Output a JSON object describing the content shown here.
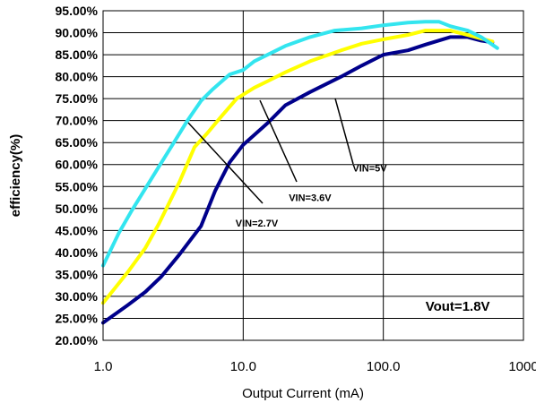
{
  "chart_data": {
    "type": "line",
    "xlabel": "Output Current (mA)",
    "ylabel": "efficiency(%)",
    "x_scale": "log",
    "xlim": [
      1,
      1000
    ],
    "ylim": [
      20,
      95
    ],
    "x_ticks": [
      1,
      10,
      100,
      1000
    ],
    "x_tick_labels": [
      "1.0",
      "10.0",
      "100.0",
      "1000"
    ],
    "y_ticks": [
      20,
      25,
      30,
      35,
      40,
      45,
      50,
      55,
      60,
      65,
      70,
      75,
      80,
      85,
      90,
      95
    ],
    "y_tick_labels": [
      "20.00%",
      "25.00%",
      "30.00%",
      "35.00%",
      "40.00%",
      "45.00%",
      "50.00%",
      "55.00%",
      "60.00%",
      "65.00%",
      "70.00%",
      "75.00%",
      "80.00%",
      "85.00%",
      "90.00%",
      "95.00%"
    ],
    "grid": true,
    "series": [
      {
        "name": "VIN=2.7V",
        "color": "#00008b",
        "x": [
          1.0,
          1.5,
          2.0,
          2.6,
          3.5,
          5.0,
          6.3,
          8.0,
          10.0,
          15.0,
          20.0,
          30.0,
          50.0,
          70.0,
          100.0,
          150.0,
          200.0,
          300.0,
          400.0,
          500.0,
          600.0
        ],
        "y": [
          24.0,
          28.0,
          31.0,
          34.5,
          39.5,
          46.0,
          54.0,
          60.5,
          64.5,
          69.5,
          73.5,
          76.5,
          80.0,
          82.5,
          85.0,
          86.0,
          87.3,
          89.0,
          89.0,
          88.2,
          87.8
        ]
      },
      {
        "name": "VIN=3.6V",
        "color": "#ffff00",
        "x": [
          1.0,
          1.5,
          2.0,
          2.5,
          3.5,
          4.5,
          5.5,
          7.0,
          9.0,
          12.0,
          15.0,
          20.0,
          30.0,
          50.0,
          70.0,
          100.0,
          150.0,
          200.0,
          300.0,
          400.0,
          600.0
        ],
        "y": [
          28.5,
          35.5,
          41.0,
          46.5,
          56.0,
          64.0,
          67.0,
          71.0,
          75.0,
          77.5,
          79.0,
          81.0,
          83.5,
          86.0,
          87.5,
          88.5,
          89.5,
          90.5,
          90.5,
          89.5,
          88.0
        ]
      },
      {
        "name": "VIN=5V",
        "color": "#33e5ef",
        "x": [
          1.0,
          1.3,
          1.6,
          2.0,
          2.5,
          3.2,
          4.0,
          5.0,
          6.0,
          8.0,
          10.0,
          12.0,
          20.0,
          30.0,
          45.0,
          70.0,
          100.0,
          150.0,
          200.0,
          250.0,
          300.0,
          400.0,
          500.0,
          650.0
        ],
        "y": [
          37.0,
          44.5,
          49.5,
          54.5,
          59.5,
          65.0,
          70.0,
          74.5,
          77.0,
          80.5,
          81.5,
          83.5,
          87.0,
          89.0,
          90.5,
          91.0,
          91.7,
          92.3,
          92.5,
          92.5,
          91.5,
          90.5,
          89.0,
          86.5
        ]
      }
    ],
    "annotations": [
      {
        "text": "VIN=5V",
        "x": 80,
        "y": 59.2
      },
      {
        "text": "VIN=3.6V",
        "x": 30,
        "y": 52.5
      },
      {
        "text": "VIN=2.7V",
        "x": 12.5,
        "y": 46.7
      },
      {
        "text": "Vout=1.8V",
        "x": 200,
        "y": 27.5
      }
    ]
  }
}
